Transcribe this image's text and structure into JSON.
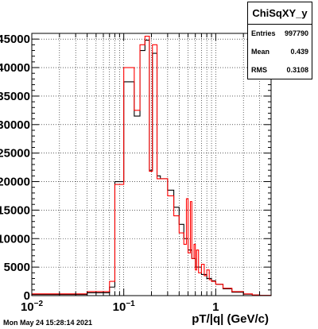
{
  "chart_data": {
    "type": "histogram",
    "xlabel": "pT/|q| (GeV/c)",
    "x_scale": "log",
    "xlim": [
      0.01,
      4
    ],
    "ylim": [
      0,
      46000
    ],
    "grid": true,
    "x_ticks": [
      {
        "value": 0.01,
        "base": "10",
        "exp": "−2"
      },
      {
        "value": 0.1,
        "base": "10",
        "exp": "−1"
      },
      {
        "value": 1,
        "base": "1",
        "exp": ""
      }
    ],
    "y_ticks": [
      {
        "value": 0,
        "label": "0"
      },
      {
        "value": 5000,
        "label": "5000"
      },
      {
        "value": 10000,
        "label": "10000"
      },
      {
        "value": 15000,
        "label": "15000"
      },
      {
        "value": 20000,
        "label": "20000"
      },
      {
        "value": 25000,
        "label": "25000"
      },
      {
        "value": 30000,
        "label": "30000"
      },
      {
        "value": 35000,
        "label": "35000"
      },
      {
        "value": 40000,
        "label": "40000"
      },
      {
        "value": 45000,
        "label": "45000"
      }
    ],
    "series": [
      {
        "color": "#000000",
        "bins": [
          [
            0.01,
            0.04,
            200
          ],
          [
            0.04,
            0.07,
            500
          ],
          [
            0.07,
            0.08,
            1500
          ],
          [
            0.08,
            0.1,
            20000
          ],
          [
            0.1,
            0.13,
            37500
          ],
          [
            0.13,
            0.15,
            31500
          ],
          [
            0.15,
            0.17,
            43000
          ],
          [
            0.17,
            0.19,
            44800
          ],
          [
            0.19,
            0.205,
            22000
          ],
          [
            0.205,
            0.23,
            42500
          ],
          [
            0.23,
            0.25,
            21000
          ],
          [
            0.25,
            0.3,
            20500
          ],
          [
            0.3,
            0.35,
            18500
          ],
          [
            0.35,
            0.4,
            15500
          ],
          [
            0.4,
            0.45,
            12500
          ],
          [
            0.45,
            0.5,
            10000
          ],
          [
            0.5,
            0.55,
            8000
          ],
          [
            0.55,
            0.6,
            6500
          ],
          [
            0.6,
            0.7,
            5000
          ],
          [
            0.7,
            0.8,
            3700
          ],
          [
            0.8,
            0.9,
            3000
          ],
          [
            0.9,
            1.0,
            2600
          ],
          [
            1.0,
            1.2,
            2000
          ],
          [
            1.2,
            1.5,
            1200
          ],
          [
            1.5,
            2.0,
            600
          ],
          [
            2.0,
            2.5,
            250
          ],
          [
            2.5,
            3.0,
            100
          ],
          [
            3.0,
            4.0,
            30
          ]
        ]
      },
      {
        "color": "#ff0000",
        "bins": [
          [
            0.01,
            0.04,
            300
          ],
          [
            0.04,
            0.07,
            700
          ],
          [
            0.07,
            0.08,
            2500
          ],
          [
            0.08,
            0.1,
            19500
          ],
          [
            0.1,
            0.13,
            40000
          ],
          [
            0.13,
            0.15,
            32500
          ],
          [
            0.15,
            0.17,
            44000
          ],
          [
            0.17,
            0.19,
            45500
          ],
          [
            0.19,
            0.205,
            21800
          ],
          [
            0.205,
            0.23,
            44000
          ],
          [
            0.23,
            0.25,
            20500
          ],
          [
            0.25,
            0.3,
            20500
          ],
          [
            0.3,
            0.35,
            17500
          ],
          [
            0.35,
            0.4,
            14000
          ],
          [
            0.4,
            0.45,
            11000
          ],
          [
            0.45,
            0.48,
            9000
          ],
          [
            0.48,
            0.5,
            17000
          ],
          [
            0.5,
            0.53,
            7500
          ],
          [
            0.53,
            0.55,
            16500
          ],
          [
            0.55,
            0.58,
            6500
          ],
          [
            0.58,
            0.6,
            9000
          ],
          [
            0.6,
            0.62,
            4500
          ],
          [
            0.62,
            0.65,
            8000
          ],
          [
            0.65,
            0.7,
            4000
          ],
          [
            0.7,
            0.75,
            5500
          ],
          [
            0.75,
            0.8,
            3500
          ],
          [
            0.8,
            0.85,
            4500
          ],
          [
            0.85,
            0.9,
            2800
          ],
          [
            0.9,
            1.0,
            2500
          ],
          [
            1.0,
            1.2,
            2000
          ],
          [
            1.2,
            1.5,
            1300
          ],
          [
            1.5,
            2.0,
            700
          ],
          [
            2.0,
            2.5,
            300
          ],
          [
            2.5,
            3.0,
            120
          ],
          [
            3.0,
            4.0,
            40
          ]
        ]
      }
    ],
    "stats": {
      "title": "ChiSqXY_y",
      "rows": [
        {
          "label": "Entries",
          "value": "997790"
        },
        {
          "label": "Mean",
          "value": "0.439"
        },
        {
          "label": "RMS",
          "value": "0.3108"
        }
      ]
    }
  },
  "footer": {
    "timestamp": "Mon May 24 15:28:14 2021"
  }
}
